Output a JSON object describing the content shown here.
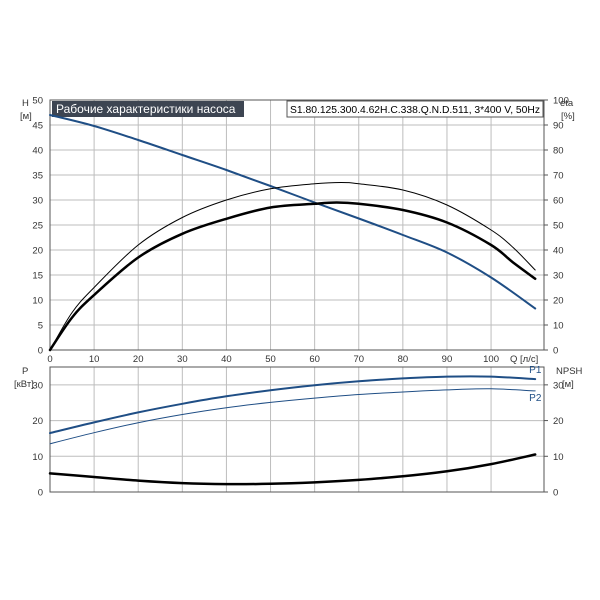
{
  "chart_data": [
    {
      "type": "line",
      "title": "Рабочие характеристики насоса",
      "subtitle": "S1.80.125.300.4.62H.C.338.Q.N.D.511, 3*400 V, 50Hz",
      "xlabel": "Q [л/с]",
      "ylabel": "H [м]",
      "ylabel_name": "H",
      "ylabel_unit": "[м]",
      "ylabel_right": "eta [%]",
      "ylabel_right_name": "eta",
      "ylabel_right_unit": "[%]",
      "xlim": [
        0,
        112
      ],
      "ylim": [
        0,
        50
      ],
      "ylim_right": [
        0,
        100
      ],
      "xticks": [
        "0",
        "10",
        "20",
        "30",
        "40",
        "50",
        "60",
        "70",
        "80",
        "90",
        "100"
      ],
      "yticks": [
        "0",
        "5",
        "10",
        "15",
        "20",
        "25",
        "30",
        "35",
        "40",
        "45",
        "50"
      ],
      "yticks_right": [
        "0",
        "10",
        "20",
        "30",
        "40",
        "50",
        "60",
        "70",
        "80",
        "90",
        "100"
      ],
      "grid": true,
      "colors": {
        "head": "#1f4e85",
        "eta": "#000000",
        "title_bg": "#3d4552"
      },
      "series": [
        {
          "key": "head",
          "axis": "left",
          "color": "#1f4e85",
          "stroke_width": 2,
          "x": [
            0,
            10,
            20,
            30,
            40,
            50,
            60,
            70,
            80,
            90,
            100,
            110
          ],
          "y": [
            47,
            44.8,
            42,
            39,
            36,
            32.8,
            29.5,
            26.3,
            23,
            19.5,
            14.5,
            8.3
          ]
        },
        {
          "key": "eta_1",
          "axis": "right",
          "color": "#000000",
          "stroke_width": 1,
          "x": [
            0,
            5,
            10,
            20,
            30,
            40,
            50,
            60,
            66,
            70,
            80,
            90,
            100,
            105,
            110
          ],
          "y": [
            0,
            15,
            25,
            42,
            53,
            60,
            64.5,
            66.5,
            67,
            66.5,
            64,
            58,
            48,
            41,
            32
          ]
        },
        {
          "key": "eta_2",
          "axis": "right",
          "color": "#000000",
          "stroke_width": 2.5,
          "x": [
            0,
            5,
            10,
            20,
            30,
            40,
            50,
            60,
            65,
            70,
            80,
            90,
            100,
            105,
            110
          ],
          "y": [
            0,
            13,
            22,
            37,
            46.5,
            52.5,
            57,
            58.5,
            59,
            58.5,
            56,
            51,
            42,
            35,
            28.5
          ]
        }
      ]
    },
    {
      "type": "line",
      "xlabel": "",
      "ylabel": "P [кВт]",
      "ylabel_name": "P",
      "ylabel_unit": "[кВт]",
      "ylabel_right": "NPSH [м]",
      "ylabel_right_name": "NPSH",
      "ylabel_right_unit": "[м]",
      "xlim": [
        0,
        112
      ],
      "ylim": [
        0,
        35
      ],
      "ylim_right": [
        0,
        35
      ],
      "yticks": [
        "0",
        "10",
        "20",
        "30"
      ],
      "yticks_right": [
        "0",
        "10",
        "20",
        "30"
      ],
      "grid": true,
      "series": [
        {
          "name": "P1",
          "key": "p1",
          "axis": "left",
          "color": "#1f4e85",
          "stroke_width": 2,
          "x": [
            0,
            10,
            20,
            30,
            40,
            50,
            60,
            70,
            80,
            90,
            100,
            110
          ],
          "y": [
            16.5,
            19.5,
            22.3,
            24.7,
            26.8,
            28.5,
            29.9,
            31,
            31.8,
            32.3,
            32.3,
            31.6
          ]
        },
        {
          "name": "P2",
          "key": "p2",
          "axis": "left",
          "color": "#1f4e85",
          "stroke_width": 1,
          "x": [
            0,
            10,
            20,
            30,
            40,
            50,
            60,
            70,
            80,
            90,
            100,
            110
          ],
          "y": [
            13.5,
            16.6,
            19.4,
            21.7,
            23.6,
            25.1,
            26.3,
            27.3,
            28,
            28.6,
            28.9,
            28.3
          ]
        },
        {
          "name": "NPSH",
          "key": "npsh",
          "axis": "right",
          "color": "#000000",
          "stroke_width": 2.5,
          "x": [
            0,
            10,
            20,
            30,
            40,
            50,
            60,
            70,
            80,
            90,
            100,
            110
          ],
          "y": [
            5.2,
            4.2,
            3.2,
            2.5,
            2.2,
            2.3,
            2.7,
            3.4,
            4.4,
            5.8,
            7.8,
            10.5
          ]
        }
      ]
    }
  ]
}
